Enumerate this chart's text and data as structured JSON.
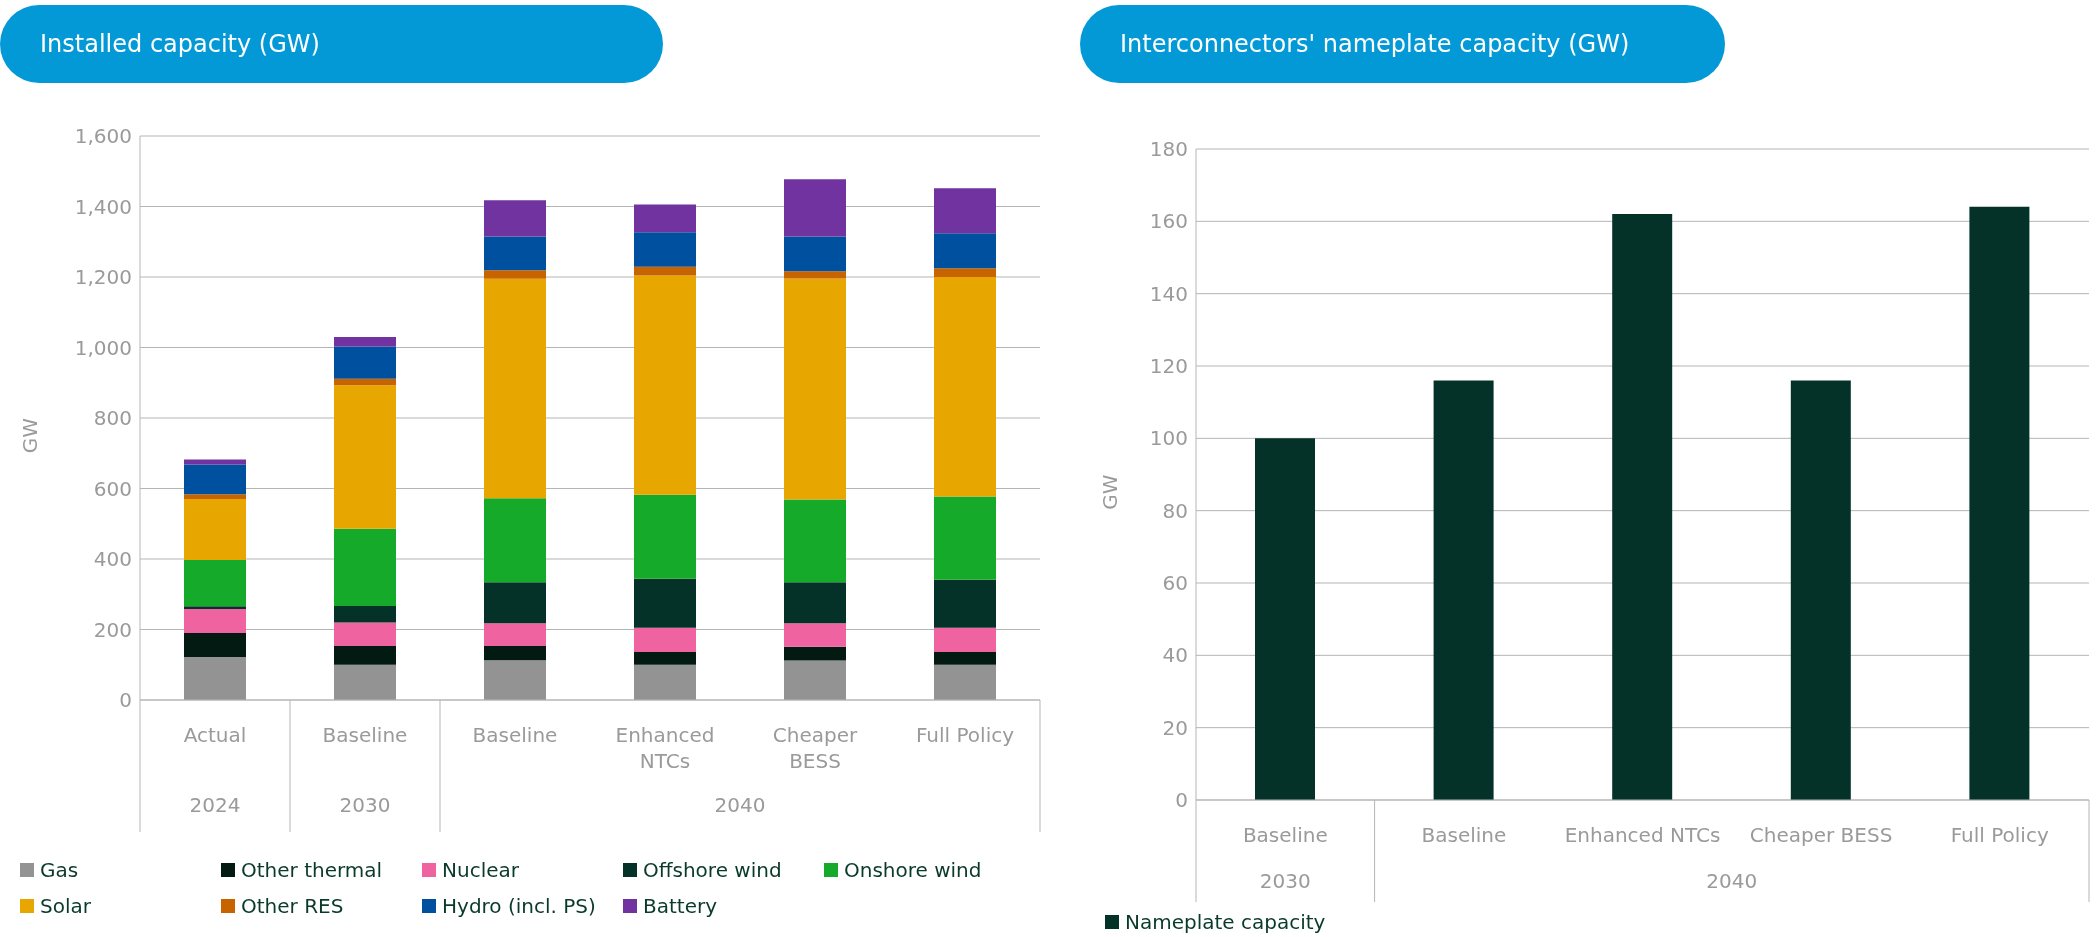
{
  "chart_data": [
    {
      "type": "bar",
      "title": "Installed capacity (GW)",
      "ylabel": "GW",
      "stacked": true,
      "grid": "y",
      "legend": "bottom",
      "categories": [
        "Actual",
        "Baseline",
        "Baseline",
        "Enhanced NTCs",
        "Cheaper BESS",
        "Full Policy"
      ],
      "annotations": [
        "2024",
        "2030",
        "2040"
      ],
      "ylim": [
        0,
        1600
      ],
      "yticks": [
        0,
        200,
        400,
        600,
        800,
        {
          "value": 1000,
          "label": "1,000"
        },
        {
          "value": 1200,
          "label": "1,200"
        },
        {
          "value": 1400,
          "label": "1,400"
        },
        {
          "value": 1600,
          "label": "1,600"
        }
      ],
      "series": [
        {
          "name": "Gas",
          "color": "#939393",
          "values": [
            122,
            100,
            113,
            100,
            112,
            100
          ]
        },
        {
          "name": "Other thermal",
          "color": "#031a12",
          "values": [
            68,
            53,
            40,
            36,
            39,
            36
          ]
        },
        {
          "name": "Nuclear",
          "color": "#ef64a0",
          "values": [
            68,
            67,
            65,
            69,
            67,
            69
          ]
        },
        {
          "name": "Offshore wind",
          "color": "#043228",
          "values": [
            8,
            47,
            116,
            139,
            116,
            136
          ]
        },
        {
          "name": "Onshore wind",
          "color": "#16aa2a",
          "values": [
            131,
            219,
            238,
            238,
            235,
            236
          ]
        },
        {
          "name": "Solar",
          "color": "#e8a600",
          "values": [
            173,
            407,
            623,
            622,
            627,
            623
          ]
        },
        {
          "name": "Other RES",
          "color": "#c86400",
          "values": [
            14,
            18,
            24,
            25,
            20,
            25
          ]
        },
        {
          "name": "Hydro (incl. PS)",
          "color": "#0050a0",
          "values": [
            84,
            92,
            96,
            98,
            99,
            99
          ]
        },
        {
          "name": "Battery",
          "color": "#7033a0",
          "values": [
            14,
            27,
            103,
            79,
            162,
            128
          ]
        }
      ]
    },
    {
      "type": "bar",
      "title": "Interconnectors' nameplate capacity (GW)",
      "ylabel": "GW",
      "grid": "y",
      "legend": "bottom left",
      "categories": [
        "Baseline",
        "Baseline",
        "Enhanced NTCs",
        "Cheaper BESS",
        "Full Policy"
      ],
      "annotations": [
        "2030",
        "2040"
      ],
      "ylim": [
        0,
        180
      ],
      "yticks": [
        0,
        20,
        40,
        60,
        80,
        100,
        120,
        140,
        160,
        180
      ],
      "series": [
        {
          "name": "Nameplate capacity",
          "color": "#043228",
          "values": [
            100,
            116,
            162,
            116,
            164
          ]
        }
      ]
    }
  ]
}
